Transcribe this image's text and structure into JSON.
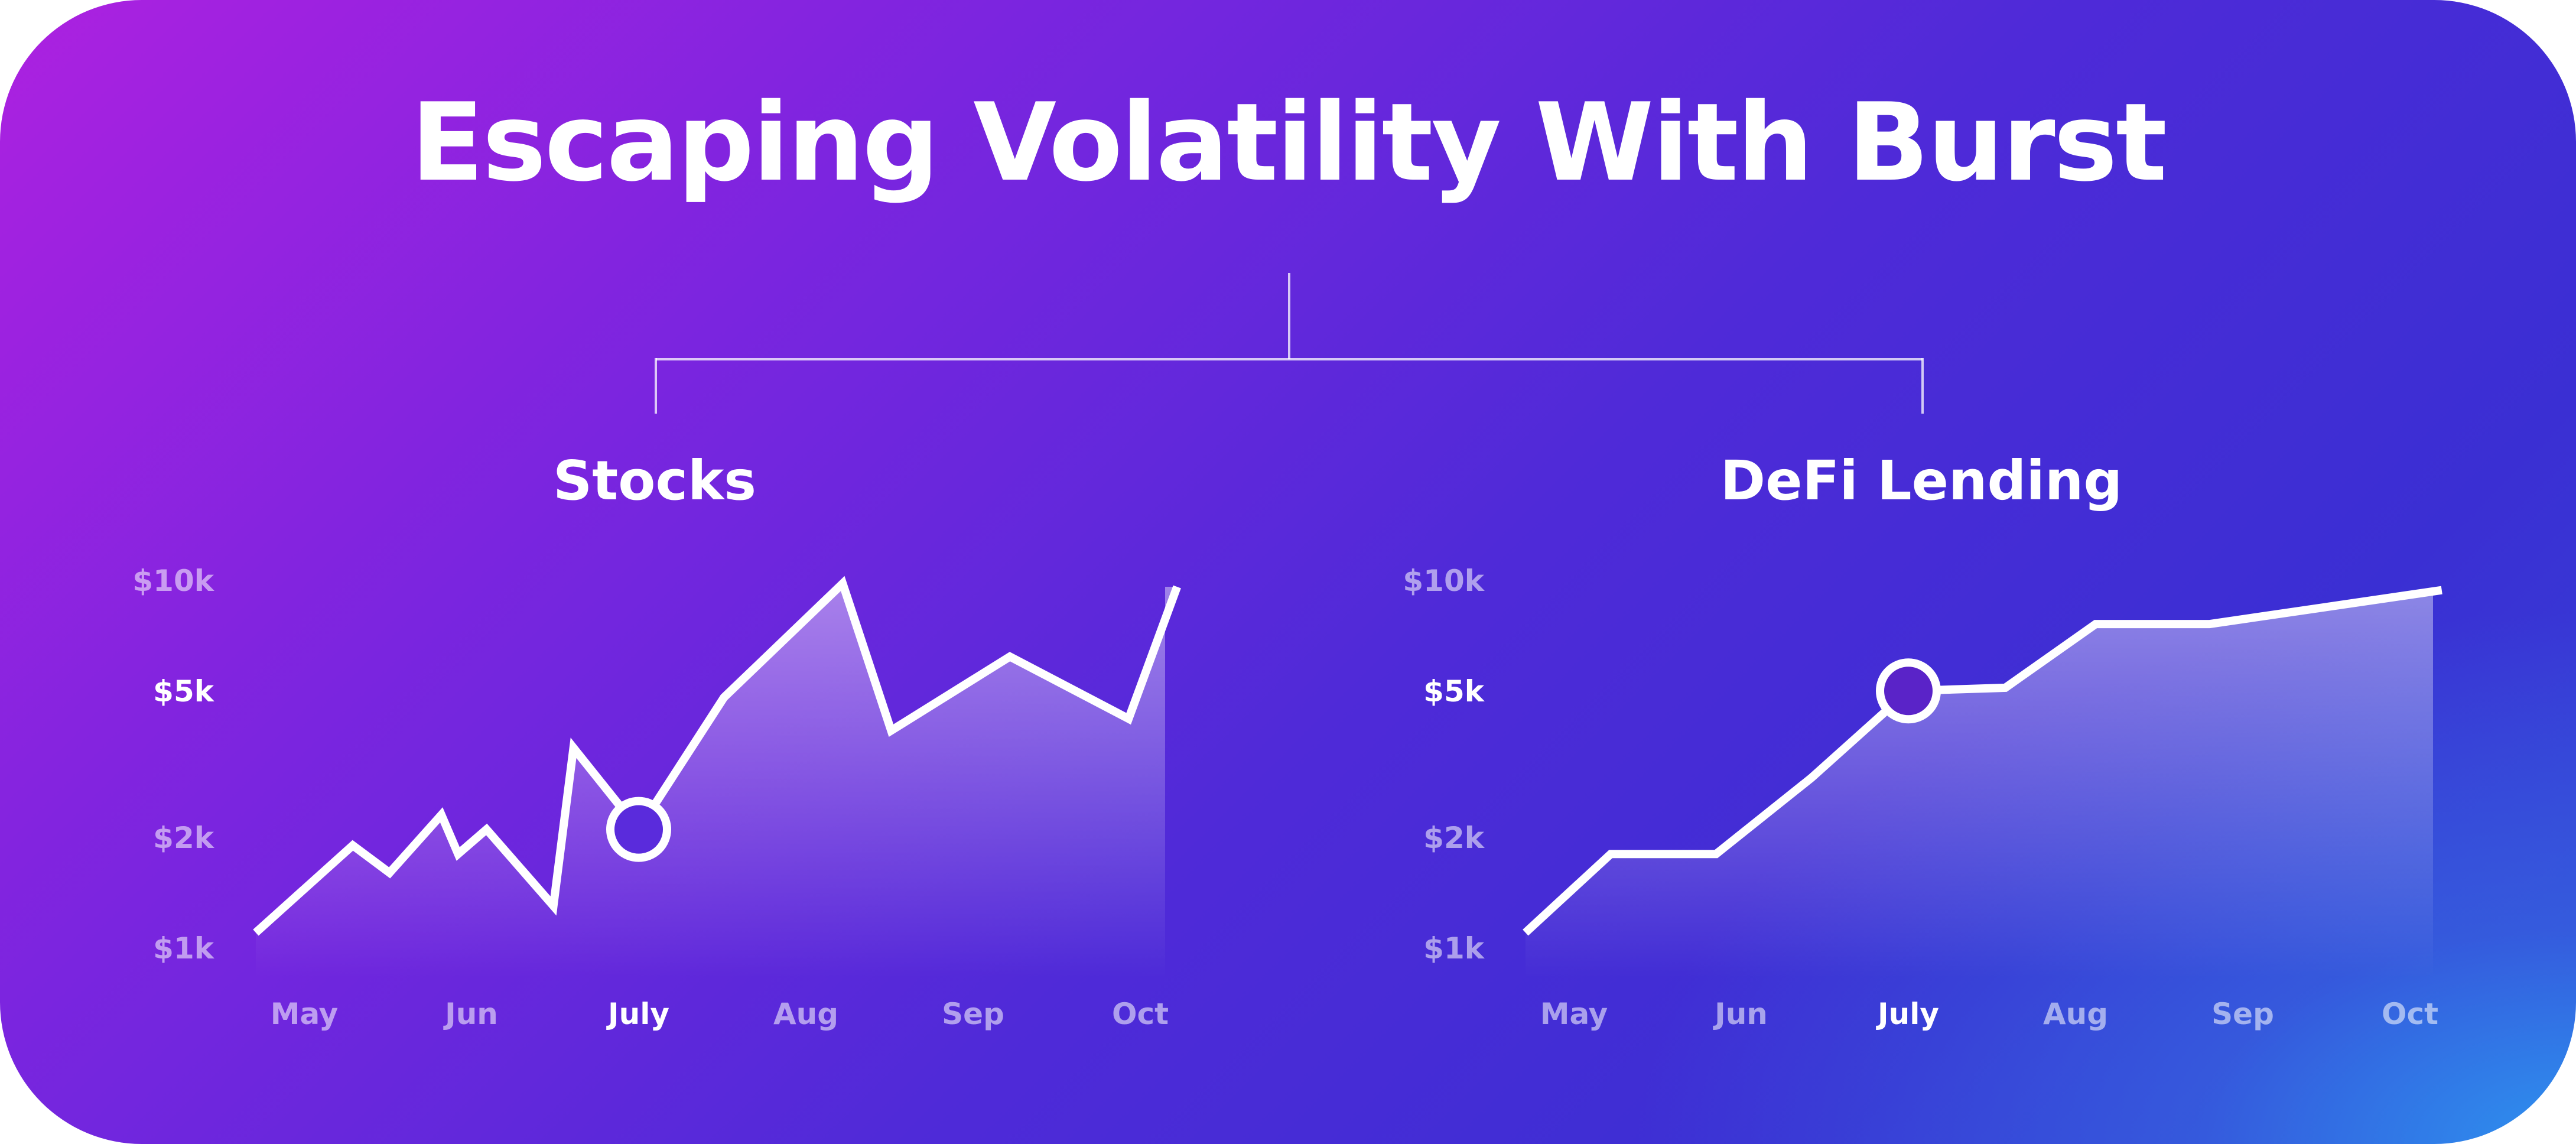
{
  "title": "Escaping Volatility With Burst",
  "colors": {
    "line": "#ffffff",
    "stocks_marker_fill": "#5a2bdc",
    "defi_marker_fill": "#5a23c8"
  },
  "chart_data": [
    {
      "type": "area",
      "title": "Stocks",
      "categories": [
        "May",
        "Jun",
        "July",
        "Aug",
        "Sep",
        "Oct"
      ],
      "highlight_category": "July",
      "highlight_tick": "$5k",
      "y_tick_labels": [
        "$10k",
        "$5k",
        "$2k",
        "$1k"
      ],
      "y_tick_values": [
        10,
        5,
        2,
        1
      ],
      "y_scale": "log",
      "ylim": [
        1,
        10
      ],
      "unit": "$k",
      "x": [
        -0.29,
        0.29,
        0.51,
        0.82,
        0.92,
        1.09,
        1.49,
        1.61,
        2.0,
        2.51,
        3.22,
        3.51,
        4.22,
        4.93,
        5.22
      ],
      "values": [
        1.1,
        1.9,
        1.6,
        2.3,
        1.8,
        2.1,
        1.3,
        3.5,
        2.1,
        4.8,
        9.8,
        3.9,
        6.2,
        4.2,
        9.6
      ],
      "marker": {
        "x": 2.0,
        "value": 2.1
      }
    },
    {
      "type": "area",
      "title": "DeFi Lending",
      "categories": [
        "May",
        "Jun",
        "July",
        "Aug",
        "Sep",
        "Oct"
      ],
      "highlight_category": "July",
      "highlight_tick": "$5k",
      "y_tick_labels": [
        "$10k",
        "$5k",
        "$2k",
        "$1k"
      ],
      "y_tick_values": [
        10,
        5,
        2,
        1
      ],
      "y_scale": "log",
      "ylim": [
        1,
        10
      ],
      "unit": "$k",
      "x": [
        -0.29,
        0.22,
        0.85,
        1.42,
        2.0,
        2.58,
        3.12,
        3.8,
        5.19
      ],
      "values": [
        1.1,
        1.8,
        1.8,
        2.9,
        5.0,
        5.1,
        7.6,
        7.6,
        9.4
      ],
      "marker": {
        "x": 2.0,
        "value": 5.0
      }
    }
  ]
}
